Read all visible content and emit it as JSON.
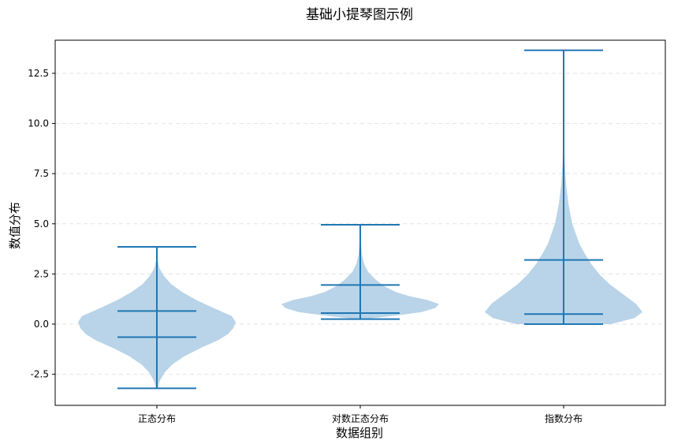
{
  "chart_data": {
    "type": "violin",
    "title": "基础小提琴图示例",
    "xlabel": "数据组别",
    "ylabel": "数值分布",
    "ylim": [
      -4.05,
      14.15
    ],
    "yticks": [
      -2.5,
      0.0,
      2.5,
      5.0,
      7.5,
      10.0,
      12.5
    ],
    "ytick_labels": [
      "-2.5",
      "0.0",
      "2.5",
      "5.0",
      "7.5",
      "10.0",
      "12.5"
    ],
    "grid": "y-dashed",
    "colors": {
      "body": "#b9d4e8",
      "lines": "#1f77b4"
    },
    "categories": [
      "正态分布",
      "对数正态分布",
      "指数分布"
    ],
    "groups": [
      {
        "name": "正态分布",
        "min": -3.2,
        "max": 3.85,
        "quantiles": [
          -0.65,
          0.65
        ],
        "density": [
          [
            -3.2,
            0.01
          ],
          [
            -2.8,
            0.04
          ],
          [
            -2.4,
            0.1
          ],
          [
            -2.0,
            0.2
          ],
          [
            -1.6,
            0.35
          ],
          [
            -1.2,
            0.55
          ],
          [
            -0.8,
            0.78
          ],
          [
            -0.5,
            0.9
          ],
          [
            -0.2,
            0.97
          ],
          [
            0.1,
            1.0
          ],
          [
            0.4,
            0.95
          ],
          [
            0.8,
            0.72
          ],
          [
            1.2,
            0.5
          ],
          [
            1.6,
            0.32
          ],
          [
            2.0,
            0.18
          ],
          [
            2.4,
            0.09
          ],
          [
            2.8,
            0.03
          ],
          [
            3.2,
            0.01
          ],
          [
            3.85,
            0.0
          ]
        ]
      },
      {
        "name": "对数正态分布",
        "min": 0.25,
        "max": 4.95,
        "quantiles": [
          0.55,
          1.95
        ],
        "density": [
          [
            0.25,
            0.05
          ],
          [
            0.4,
            0.4
          ],
          [
            0.6,
            0.78
          ],
          [
            0.8,
            0.95
          ],
          [
            1.0,
            1.0
          ],
          [
            1.2,
            0.85
          ],
          [
            1.4,
            0.62
          ],
          [
            1.6,
            0.45
          ],
          [
            1.9,
            0.3
          ],
          [
            2.2,
            0.2
          ],
          [
            2.6,
            0.1
          ],
          [
            3.0,
            0.05
          ],
          [
            3.5,
            0.02
          ],
          [
            4.0,
            0.01
          ],
          [
            4.95,
            0.0
          ]
        ]
      },
      {
        "name": "指数分布",
        "min": 0.0,
        "max": 13.65,
        "quantiles": [
          0.5,
          3.2
        ],
        "density": [
          [
            0.0,
            0.6
          ],
          [
            0.3,
            0.9
          ],
          [
            0.6,
            1.0
          ],
          [
            1.0,
            0.92
          ],
          [
            1.5,
            0.75
          ],
          [
            2.0,
            0.58
          ],
          [
            2.5,
            0.45
          ],
          [
            3.0,
            0.35
          ],
          [
            3.5,
            0.27
          ],
          [
            4.0,
            0.2
          ],
          [
            5.0,
            0.11
          ],
          [
            6.0,
            0.06
          ],
          [
            7.0,
            0.03
          ],
          [
            8.0,
            0.015
          ],
          [
            9.0,
            0.005
          ],
          [
            10.0,
            0.002
          ],
          [
            13.65,
            0.0
          ]
        ]
      }
    ]
  }
}
